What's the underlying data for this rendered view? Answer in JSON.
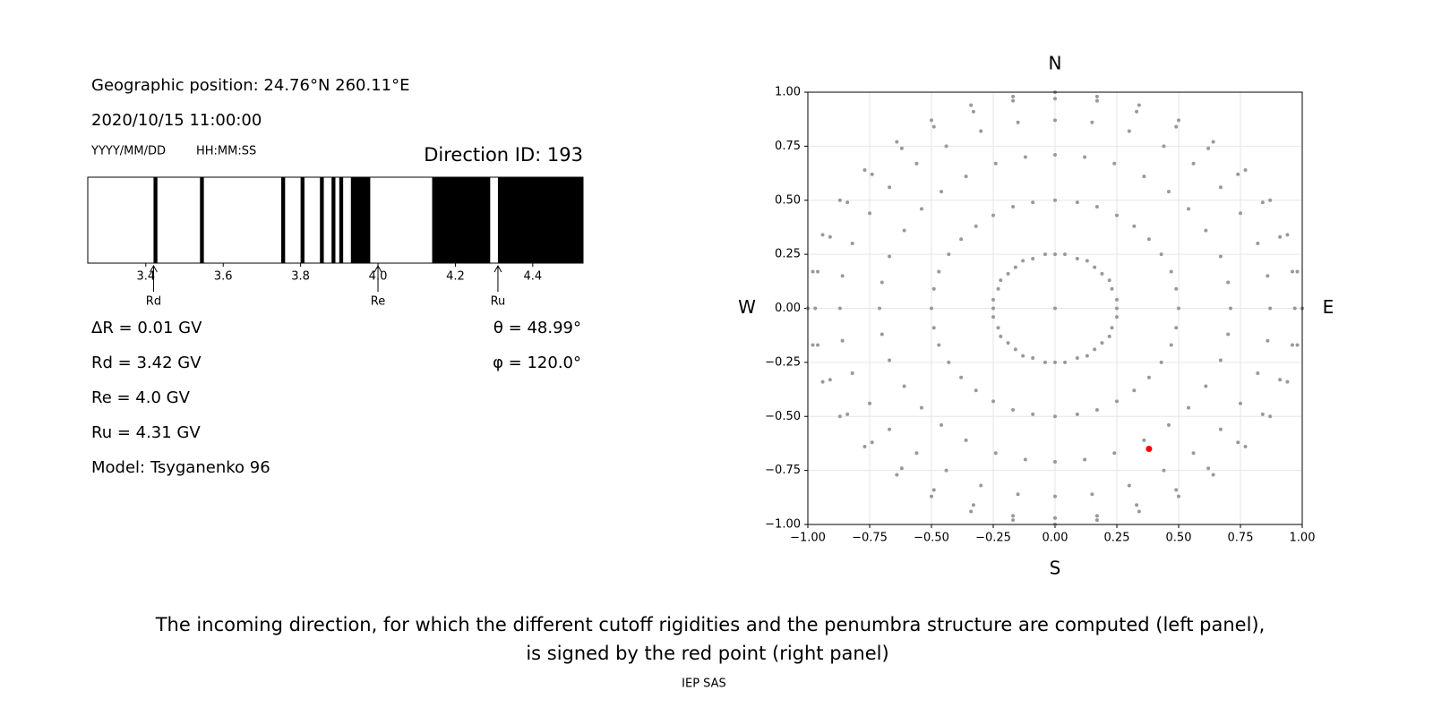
{
  "chart_data": [
    {
      "type": "broken_bar",
      "xlim": [
        3.25,
        4.53
      ],
      "xticks": [
        3.4,
        3.6,
        3.8,
        {
          "value": 4,
          "label": "4.0"
        },
        4.2,
        4.4
      ],
      "color": "#000000",
      "segments": [
        [
          3.42,
          3.43
        ],
        [
          3.54,
          3.55
        ],
        [
          3.75,
          3.76
        ],
        [
          3.8,
          3.81
        ],
        [
          3.85,
          3.86
        ],
        [
          3.88,
          3.89
        ],
        [
          3.9,
          3.91
        ],
        [
          3.93,
          3.98
        ],
        [
          4.14,
          4.29
        ],
        [
          4.31,
          4.53
        ]
      ],
      "markers": [
        {
          "label": "Rd",
          "value": 3.42
        },
        {
          "label": "Re",
          "value": 4
        },
        {
          "label": "Ru",
          "value": 4.31
        }
      ]
    },
    {
      "type": "scatter",
      "xlim": [
        -1,
        1
      ],
      "ylim": [
        -1,
        1
      ],
      "grid": true,
      "color": "#999999",
      "xticks": [
        {
          "value": -1,
          "label": "−1.00"
        },
        {
          "value": -0.75,
          "label": "−0.75"
        },
        {
          "value": -0.5,
          "label": "−0.50"
        },
        {
          "value": -0.25,
          "label": "−0.25"
        },
        {
          "value": 0,
          "label": "0.00"
        },
        {
          "value": 0.25,
          "label": "0.25"
        },
        {
          "value": 0.5,
          "label": "0.50"
        },
        {
          "value": 0.75,
          "label": "0.75"
        },
        {
          "value": 1,
          "label": "1.00"
        }
      ],
      "yticks": [
        {
          "value": -1,
          "label": "−1.00"
        },
        {
          "value": -0.75,
          "label": "−0.75"
        },
        {
          "value": -0.5,
          "label": "−0.50"
        },
        {
          "value": -0.25,
          "label": "−0.25"
        },
        {
          "value": 0,
          "label": "0.00"
        },
        {
          "value": 0.25,
          "label": "0.25"
        },
        {
          "value": 0.5,
          "label": "0.50"
        },
        {
          "value": 0.75,
          "label": "0.75"
        },
        {
          "value": 1,
          "label": "1.00"
        }
      ],
      "directions": {
        "top": "N",
        "bottom": "S",
        "left": "W",
        "right": "E"
      },
      "series": [
        {
          "x": [
            0
          ],
          "y": [
            0
          ]
        },
        {
          "x": [
            0,
            0.04,
            0.09,
            0.13,
            0.16,
            0.19,
            0.22,
            0.23,
            0.25,
            0.25,
            0.25,
            0.23,
            0.22,
            0.19,
            0.16,
            0.13,
            0.09,
            0.04,
            0,
            -0.04,
            -0.09,
            -0.13,
            -0.16,
            -0.19,
            -0.22,
            -0.23,
            -0.25,
            -0.25,
            -0.25,
            -0.23,
            -0.22,
            -0.19,
            -0.16,
            -0.13,
            -0.09,
            -0.04
          ],
          "y": [
            0.25,
            0.25,
            0.23,
            0.22,
            0.19,
            0.16,
            0.13,
            0.09,
            0.04,
            0,
            -0.04,
            -0.09,
            -0.13,
            -0.16,
            -0.19,
            -0.22,
            -0.23,
            -0.25,
            -0.25,
            -0.25,
            -0.23,
            -0.22,
            -0.19,
            -0.16,
            -0.13,
            -0.09,
            -0.04,
            0,
            0.04,
            0.09,
            0.13,
            0.16,
            0.19,
            0.22,
            0.23,
            0.25
          ]
        },
        {
          "x": [
            0,
            0.09,
            0.17,
            0.25,
            0.32,
            0.38,
            0.43,
            0.47,
            0.49,
            0.5,
            0.49,
            0.47,
            0.43,
            0.38,
            0.32,
            0.25,
            0.17,
            0.09,
            0,
            -0.09,
            -0.17,
            -0.25,
            -0.32,
            -0.38,
            -0.43,
            -0.47,
            -0.49,
            -0.5,
            -0.49,
            -0.47,
            -0.43,
            -0.38,
            -0.32,
            -0.25,
            -0.17,
            -0.09
          ],
          "y": [
            0.5,
            0.49,
            0.47,
            0.43,
            0.38,
            0.32,
            0.25,
            0.17,
            0.09,
            0,
            -0.09,
            -0.17,
            -0.25,
            -0.32,
            -0.38,
            -0.43,
            -0.47,
            -0.49,
            -0.5,
            -0.49,
            -0.47,
            -0.43,
            -0.38,
            -0.32,
            -0.25,
            -0.17,
            -0.09,
            0,
            0.09,
            0.17,
            0.25,
            0.32,
            0.38,
            0.43,
            0.47,
            0.49
          ]
        },
        {
          "x": [
            0,
            0.12,
            0.24,
            0.36,
            0.46,
            0.54,
            0.61,
            0.67,
            0.7,
            0.71,
            0.7,
            0.67,
            0.61,
            0.54,
            0.46,
            0.36,
            0.24,
            0.12,
            0,
            -0.12,
            -0.24,
            -0.36,
            -0.46,
            -0.54,
            -0.61,
            -0.67,
            -0.7,
            -0.71,
            -0.7,
            -0.67,
            -0.61,
            -0.54,
            -0.46,
            -0.36,
            -0.24,
            -0.12
          ],
          "y": [
            0.71,
            0.7,
            0.67,
            0.61,
            0.54,
            0.46,
            0.36,
            0.24,
            0.12,
            0,
            -0.12,
            -0.24,
            -0.36,
            -0.46,
            -0.54,
            -0.61,
            -0.67,
            -0.7,
            -0.71,
            -0.7,
            -0.67,
            -0.61,
            -0.54,
            -0.46,
            -0.36,
            -0.24,
            -0.12,
            0,
            0.12,
            0.24,
            0.36,
            0.46,
            0.54,
            0.61,
            0.67,
            0.7
          ]
        },
        {
          "x": [
            0,
            0.15,
            0.3,
            0.44,
            0.56,
            0.67,
            0.75,
            0.82,
            0.86,
            0.87,
            0.86,
            0.82,
            0.75,
            0.67,
            0.56,
            0.44,
            0.3,
            0.15,
            0,
            -0.15,
            -0.3,
            -0.44,
            -0.56,
            -0.67,
            -0.75,
            -0.82,
            -0.86,
            -0.87,
            -0.86,
            -0.82,
            -0.75,
            -0.67,
            -0.56,
            -0.44,
            -0.3,
            -0.15
          ],
          "y": [
            0.87,
            0.86,
            0.82,
            0.75,
            0.67,
            0.56,
            0.44,
            0.3,
            0.15,
            0,
            -0.15,
            -0.3,
            -0.44,
            -0.56,
            -0.67,
            -0.75,
            -0.82,
            -0.86,
            -0.87,
            -0.86,
            -0.82,
            -0.75,
            -0.67,
            -0.56,
            -0.44,
            -0.3,
            -0.15,
            0,
            0.15,
            0.3,
            0.44,
            0.56,
            0.67,
            0.75,
            0.82,
            0.86
          ]
        },
        {
          "x": [
            0,
            0.17,
            0.33,
            0.49,
            0.62,
            0.74,
            0.84,
            0.91,
            0.96,
            0.97,
            0.96,
            0.91,
            0.84,
            0.74,
            0.62,
            0.49,
            0.33,
            0.17,
            0,
            -0.17,
            -0.33,
            -0.49,
            -0.62,
            -0.74,
            -0.84,
            -0.91,
            -0.96,
            -0.97,
            -0.96,
            -0.91,
            -0.84,
            -0.74,
            -0.62,
            -0.49,
            -0.33,
            -0.17
          ],
          "y": [
            0.97,
            0.96,
            0.91,
            0.84,
            0.74,
            0.62,
            0.49,
            0.33,
            0.17,
            0,
            -0.17,
            -0.33,
            -0.49,
            -0.62,
            -0.74,
            -0.84,
            -0.91,
            -0.96,
            -0.97,
            -0.96,
            -0.91,
            -0.84,
            -0.74,
            -0.62,
            -0.49,
            -0.33,
            -0.17,
            0,
            0.17,
            0.33,
            0.49,
            0.62,
            0.74,
            0.84,
            0.91,
            0.96
          ]
        },
        {
          "x": [
            0,
            0.17,
            0.34,
            0.5,
            0.64,
            0.77,
            0.87,
            0.94,
            0.98,
            1,
            0.98,
            0.94,
            0.87,
            0.77,
            0.64,
            0.5,
            0.34,
            0.17,
            0,
            -0.17,
            -0.34,
            -0.5,
            -0.64,
            -0.77,
            -0.87,
            -0.94,
            -0.98,
            -1,
            -0.98,
            -0.94,
            -0.87,
            -0.77,
            -0.64,
            -0.5,
            -0.34,
            -0.17
          ],
          "y": [
            1,
            0.98,
            0.94,
            0.87,
            0.77,
            0.64,
            0.5,
            0.34,
            0.17,
            0,
            -0.17,
            -0.34,
            -0.5,
            -0.64,
            -0.77,
            -0.87,
            -0.94,
            -0.98,
            -1,
            -0.98,
            -0.94,
            -0.87,
            -0.77,
            -0.64,
            -0.5,
            -0.34,
            -0.17,
            0,
            0.17,
            0.34,
            0.5,
            0.64,
            0.77,
            0.87,
            0.94,
            0.98
          ]
        }
      ],
      "highlight": {
        "x": 0.38,
        "y": -0.65,
        "color": "#ff0000"
      }
    }
  ],
  "info": {
    "position": "Geographic position: 24.76°N 260.11°E",
    "datetime": "2020/10/15 11:00:00",
    "date_format": "YYYY/MM/DD",
    "time_format": "HH:MM:SS",
    "direction_id": "Direction ID: 193",
    "delta_r": "ΔR = 0.01 GV",
    "rd": "Rd = 3.42 GV",
    "re": "Re = 4.0 GV",
    "ru": "Ru = 4.31 GV",
    "model": "Model: Tsyganenko 96",
    "theta": "θ = 48.99°",
    "phi": "φ = 120.0°"
  },
  "caption": [
    "The incoming direction, for which the different cutoff rigidities and the penumbra structure are computed (left panel),",
    "is signed by the red point (right panel)"
  ],
  "footer": "IEP SAS"
}
